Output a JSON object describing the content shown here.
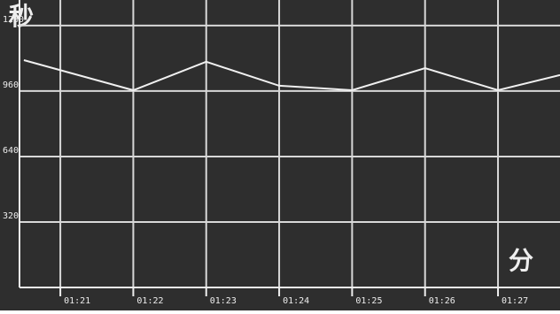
{
  "chart_data": {
    "type": "line",
    "y_unit": "秒",
    "x_unit": "分",
    "x": [
      80.5,
      82,
      83,
      84,
      85,
      86,
      87,
      87.85
    ],
    "series": [
      {
        "color": "#f0f0f0",
        "values": [
          1111,
          964,
          1103,
          986,
          964,
          1072,
          964,
          1038
        ]
      }
    ],
    "xlim": [
      80.44,
      87.85
    ],
    "xticks": [
      {
        "value": 81,
        "label": "01:21"
      },
      {
        "value": 82,
        "label": "01:22"
      },
      {
        "value": 83,
        "label": "01:23"
      },
      {
        "value": 84,
        "label": "01:24"
      },
      {
        "value": 85,
        "label": "01:25"
      },
      {
        "value": 86,
        "label": "01:26"
      },
      {
        "value": 87,
        "label": "01:27"
      }
    ],
    "ylim": [
      0,
      1405
    ],
    "yticks": [
      320,
      640,
      960,
      1280
    ],
    "grid": true
  }
}
